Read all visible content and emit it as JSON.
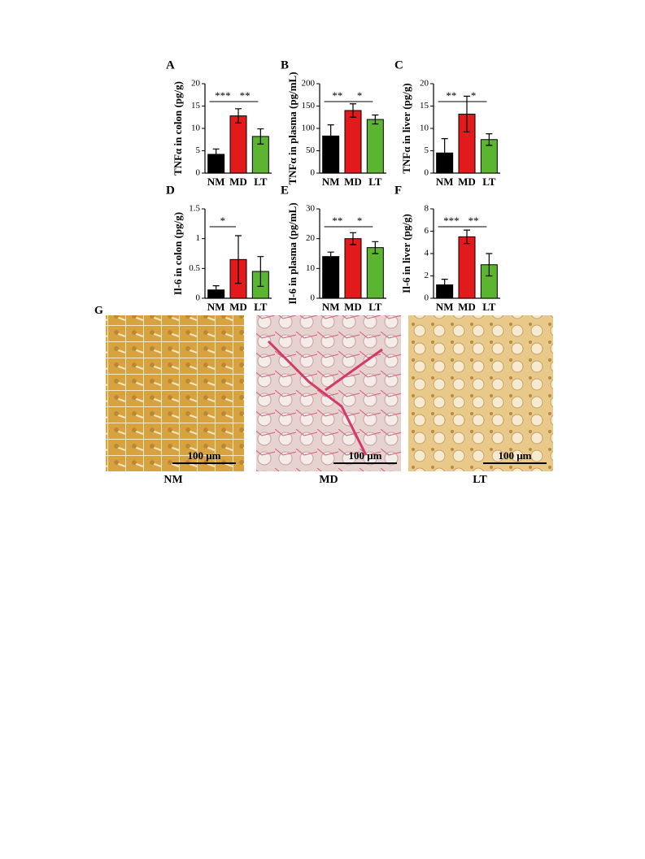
{
  "chart_data": [
    {
      "type": "bar",
      "panel": "A",
      "y_label": "TNFα in colon (pg/g)",
      "categories": [
        "NM",
        "MD",
        "LT"
      ],
      "values": [
        4.2,
        12.8,
        8.2
      ],
      "errors": [
        1.2,
        1.6,
        1.7
      ],
      "colors": [
        "#000000",
        "#e31a1c",
        "#5cb531"
      ],
      "ylim": [
        0,
        20
      ],
      "yticks": [
        0,
        5,
        10,
        15,
        20
      ],
      "significance": [
        {
          "pair": [
            0,
            1
          ],
          "label": "***"
        },
        {
          "pair": [
            1,
            2
          ],
          "label": "**"
        }
      ]
    },
    {
      "type": "bar",
      "panel": "B",
      "y_label": "TNFα in plasma (pg/mL)",
      "categories": [
        "NM",
        "MD",
        "LT"
      ],
      "values": [
        83,
        140,
        120
      ],
      "errors": [
        25,
        15,
        10
      ],
      "colors": [
        "#000000",
        "#e31a1c",
        "#5cb531"
      ],
      "ylim": [
        0,
        200
      ],
      "yticks": [
        0,
        50,
        100,
        150,
        200
      ],
      "significance": [
        {
          "pair": [
            0,
            1
          ],
          "label": "**"
        },
        {
          "pair": [
            1,
            2
          ],
          "label": "*"
        }
      ]
    },
    {
      "type": "bar",
      "panel": "C",
      "y_label": "TNFα in liver (pg/g)",
      "categories": [
        "NM",
        "MD",
        "LT"
      ],
      "values": [
        4.5,
        13.2,
        7.5
      ],
      "errors": [
        3.2,
        4,
        1.3
      ],
      "colors": [
        "#000000",
        "#e31a1c",
        "#5cb531"
      ],
      "ylim": [
        0,
        20
      ],
      "yticks": [
        0,
        5,
        10,
        15,
        20
      ],
      "significance": [
        {
          "pair": [
            0,
            1
          ],
          "label": "**"
        },
        {
          "pair": [
            1,
            2
          ],
          "label": "*"
        }
      ]
    },
    {
      "type": "bar",
      "panel": "D",
      "y_label": "Il-6 in colon (pg/g)",
      "categories": [
        "NM",
        "MD",
        "LT"
      ],
      "values": [
        0.14,
        0.65,
        0.45
      ],
      "errors": [
        0.07,
        0.4,
        0.25
      ],
      "colors": [
        "#000000",
        "#e31a1c",
        "#5cb531"
      ],
      "ylim": [
        0,
        1.5
      ],
      "yticks": [
        0,
        0.5,
        1,
        1.5
      ],
      "significance": [
        {
          "pair": [
            0,
            1
          ],
          "label": "*"
        }
      ]
    },
    {
      "type": "bar",
      "panel": "E",
      "y_label": "Il-6 in plasma (pg/mL)",
      "categories": [
        "NM",
        "MD",
        "LT"
      ],
      "values": [
        14,
        20,
        17
      ],
      "errors": [
        1.5,
        2,
        2
      ],
      "colors": [
        "#000000",
        "#e31a1c",
        "#5cb531"
      ],
      "ylim": [
        0,
        30
      ],
      "yticks": [
        0,
        10,
        20,
        30
      ],
      "significance": [
        {
          "pair": [
            0,
            1
          ],
          "label": "**"
        },
        {
          "pair": [
            1,
            2
          ],
          "label": "*"
        }
      ]
    },
    {
      "type": "bar",
      "panel": "F",
      "y_label": "Il-6 in liver (pg/g)",
      "categories": [
        "NM",
        "MD",
        "LT"
      ],
      "values": [
        1.2,
        5.5,
        3
      ],
      "errors": [
        0.5,
        0.6,
        1
      ],
      "colors": [
        "#000000",
        "#e31a1c",
        "#5cb531"
      ],
      "ylim": [
        0,
        8
      ],
      "yticks": [
        0,
        2,
        4,
        6,
        8
      ],
      "significance": [
        {
          "pair": [
            0,
            1
          ],
          "label": "***"
        },
        {
          "pair": [
            1,
            2
          ],
          "label": "**"
        }
      ]
    }
  ],
  "panel_g": {
    "label": "G",
    "images": [
      {
        "label": "NM",
        "scale_bar": "100 μm"
      },
      {
        "label": "MD",
        "scale_bar": "100 μm"
      },
      {
        "label": "LT",
        "scale_bar": "100 μm"
      }
    ]
  }
}
